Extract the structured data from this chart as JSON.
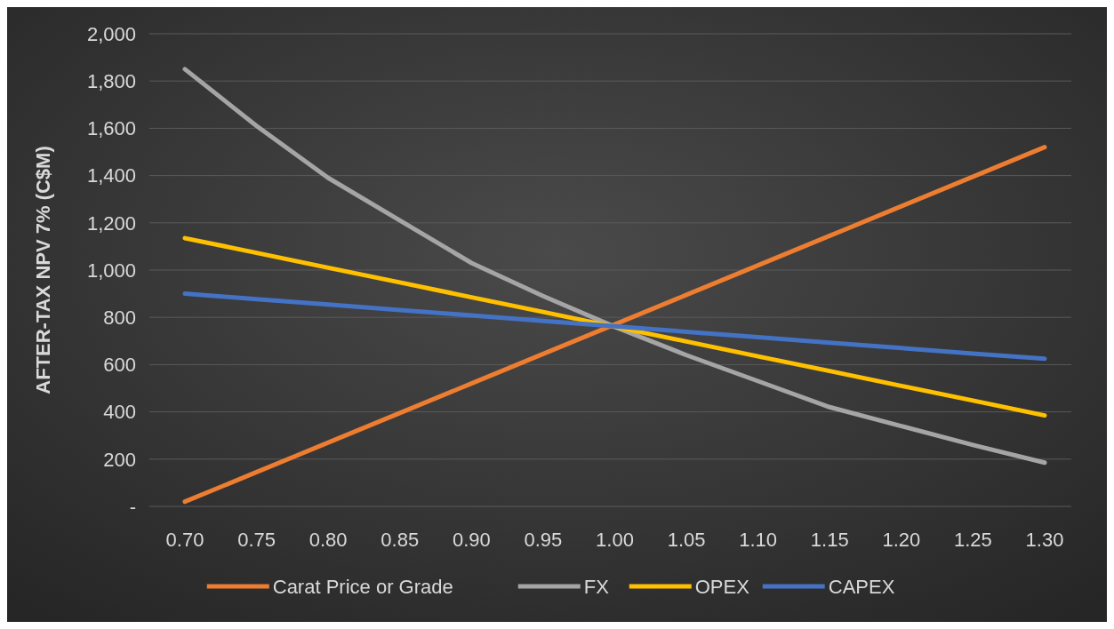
{
  "chart_data": {
    "type": "line",
    "ylabel": "AFTER-TAX NPV 7% (C$M)",
    "categories": [
      "0.70",
      "0.75",
      "0.80",
      "0.85",
      "0.90",
      "0.95",
      "1.00",
      "1.05",
      "1.10",
      "1.15",
      "1.20",
      "1.25",
      "1.30"
    ],
    "series": [
      {
        "name": "Carat Price or Grade",
        "color": "#ed7d31",
        "values": [
          20,
          145,
          270,
          395,
          520,
          645,
          770,
          895,
          1020,
          1145,
          1270,
          1395,
          1520
        ]
      },
      {
        "name": "FX",
        "color": "#a5a5a5",
        "values": [
          1850,
          1610,
          1390,
          1210,
          1030,
          890,
          760,
          640,
          530,
          420,
          340,
          260,
          185
        ]
      },
      {
        "name": "OPEX",
        "color": "#ffc000",
        "values": [
          1135,
          1073,
          1010,
          948,
          885,
          823,
          760,
          698,
          635,
          573,
          510,
          448,
          385
        ]
      },
      {
        "name": "CAPEX",
        "color": "#4472c4",
        "values": [
          900,
          877,
          854,
          831,
          808,
          785,
          762,
          739,
          716,
          693,
          670,
          647,
          625
        ]
      }
    ],
    "ylim": [
      0,
      2000
    ],
    "yticks": [
      {
        "value": 0,
        "label": "-"
      },
      {
        "value": 200,
        "label": "200"
      },
      {
        "value": 400,
        "label": "400"
      },
      {
        "value": 600,
        "label": "600"
      },
      {
        "value": 800,
        "label": "800"
      },
      {
        "value": 1000,
        "label": "1,000"
      },
      {
        "value": 1200,
        "label": "1,200"
      },
      {
        "value": 1400,
        "label": "1,400"
      },
      {
        "value": 1600,
        "label": "1,600"
      },
      {
        "value": 1800,
        "label": "1,800"
      },
      {
        "value": 2000,
        "label": "2,000"
      }
    ],
    "grid": "y",
    "legend": "bottom",
    "marker": "none",
    "line_style": "solid"
  }
}
